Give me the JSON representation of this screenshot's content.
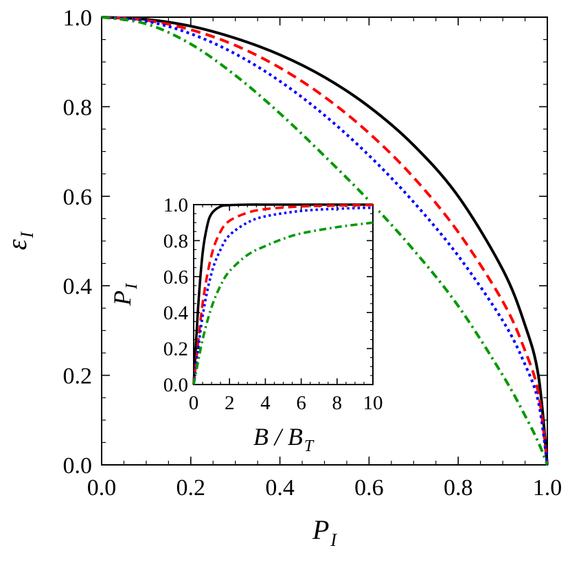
{
  "chart_data": [
    {
      "type": "line",
      "xlabel": "P",
      "xlabel_sub": "I",
      "ylabel": "ε",
      "ylabel_sub": "I",
      "xlim": [
        0,
        1
      ],
      "ylim": [
        0,
        1
      ],
      "xticks": [
        "0.0",
        "0.2",
        "0.4",
        "0.6",
        "0.8",
        "1.0"
      ],
      "yticks": [
        "0.0",
        "0.2",
        "0.4",
        "0.6",
        "0.8",
        "1.0"
      ],
      "series": [
        {
          "style": "solid",
          "color": "#000000",
          "x": [
            0,
            0.1,
            0.2,
            0.3,
            0.4,
            0.5,
            0.6,
            0.7,
            0.8,
            0.9,
            0.95,
            0.98,
            1.0
          ],
          "y": [
            1.0,
            0.995,
            0.98,
            0.953,
            0.916,
            0.866,
            0.8,
            0.714,
            0.6,
            0.436,
            0.312,
            0.199,
            0.0
          ]
        },
        {
          "style": "dashed",
          "color": "#ff0000",
          "x": [
            0,
            0.1,
            0.2,
            0.3,
            0.4,
            0.5,
            0.6,
            0.7,
            0.8,
            0.9,
            0.95,
            0.98,
            1.0
          ],
          "y": [
            1.0,
            0.993,
            0.972,
            0.937,
            0.887,
            0.822,
            0.741,
            0.642,
            0.52,
            0.365,
            0.255,
            0.16,
            0.0
          ]
        },
        {
          "style": "dotted",
          "color": "#0000ff",
          "x": [
            0,
            0.1,
            0.2,
            0.3,
            0.4,
            0.5,
            0.6,
            0.7,
            0.8,
            0.9,
            0.95,
            0.98,
            1.0
          ],
          "y": [
            1.0,
            0.991,
            0.963,
            0.918,
            0.857,
            0.781,
            0.691,
            0.587,
            0.467,
            0.322,
            0.224,
            0.14,
            0.0
          ]
        },
        {
          "style": "dashdot",
          "color": "#009900",
          "x": [
            0,
            0.1,
            0.2,
            0.3,
            0.4,
            0.5,
            0.6,
            0.7,
            0.8,
            0.9,
            0.95,
            0.98,
            1.0
          ],
          "y": [
            1.0,
            0.985,
            0.94,
            0.87,
            0.785,
            0.69,
            0.59,
            0.48,
            0.355,
            0.2,
            0.11,
            0.05,
            0.0
          ]
        }
      ]
    },
    {
      "type": "line",
      "inset": true,
      "xlabel": "B / B",
      "xlabel_sub": "T",
      "ylabel": "P",
      "ylabel_sub": "I",
      "xlim": [
        0,
        10
      ],
      "ylim": [
        0,
        1
      ],
      "xticks": [
        "0",
        "2",
        "4",
        "6",
        "8",
        "10"
      ],
      "yticks": [
        "0.0",
        "0.2",
        "0.4",
        "0.6",
        "0.8",
        "1.0"
      ],
      "series": [
        {
          "style": "solid",
          "color": "#000000",
          "x": [
            0,
            0.25,
            0.5,
            0.75,
            1.0,
            1.5,
            2.0,
            3.0,
            4.0,
            6.0,
            10.0
          ],
          "y": [
            0,
            0.43,
            0.73,
            0.88,
            0.95,
            0.99,
            0.997,
            1.0,
            1.0,
            1.0,
            1.0
          ]
        },
        {
          "style": "dashed",
          "color": "#ff0000",
          "x": [
            0,
            0.5,
            1.0,
            1.5,
            2.0,
            3.0,
            4.0,
            6.0,
            8.0,
            10.0
          ],
          "y": [
            0,
            0.45,
            0.72,
            0.85,
            0.91,
            0.955,
            0.975,
            0.99,
            0.995,
            0.998
          ]
        },
        {
          "style": "dotted",
          "color": "#0000ff",
          "x": [
            0,
            0.5,
            1.0,
            1.5,
            2.0,
            3.0,
            4.0,
            6.0,
            8.0,
            10.0
          ],
          "y": [
            0,
            0.38,
            0.62,
            0.75,
            0.83,
            0.9,
            0.935,
            0.965,
            0.977,
            0.983
          ]
        },
        {
          "style": "dashdot",
          "color": "#009900",
          "x": [
            0,
            0.5,
            1.0,
            1.5,
            2.0,
            3.0,
            4.0,
            5.0,
            6.0,
            8.0,
            10.0
          ],
          "y": [
            0,
            0.25,
            0.43,
            0.55,
            0.63,
            0.72,
            0.77,
            0.81,
            0.84,
            0.875,
            0.9
          ]
        }
      ]
    }
  ]
}
